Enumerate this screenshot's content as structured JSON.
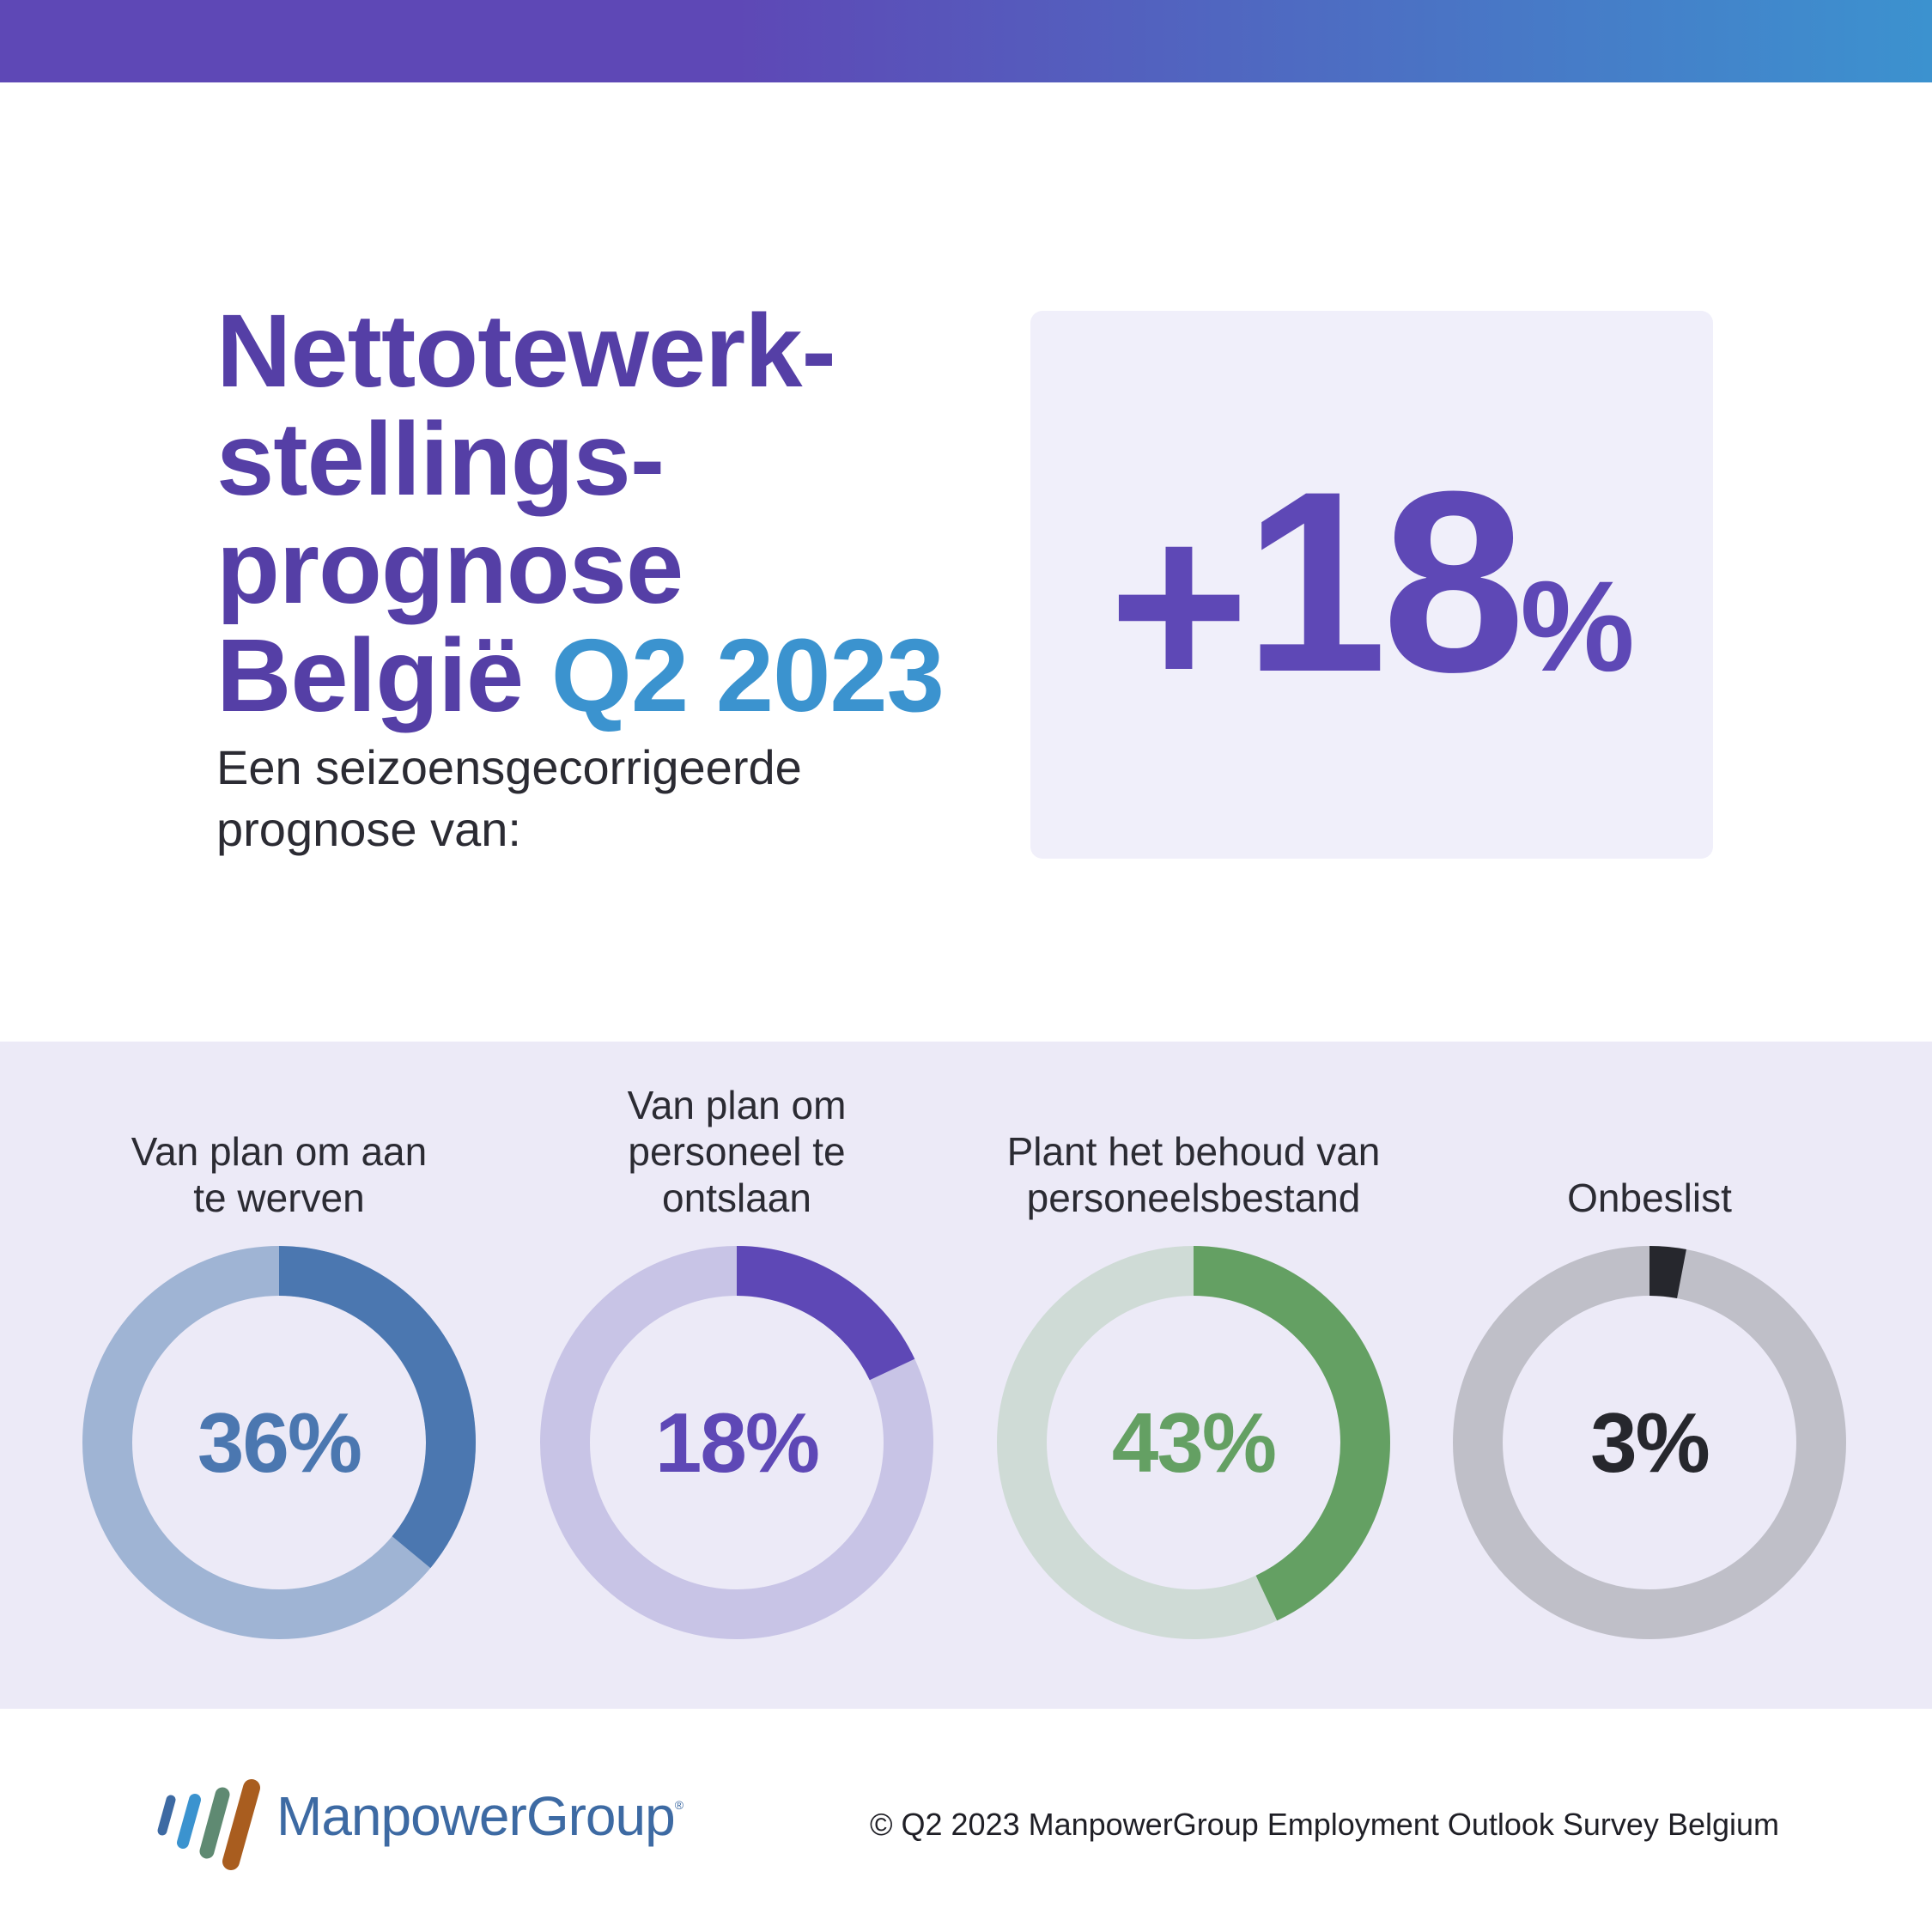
{
  "headline": {
    "line1": "Nettotewerk-",
    "line2": "stellings-",
    "line3": "prognose",
    "line4_country": "België",
    "line4_period": "Q2 2023"
  },
  "subtitle": {
    "line1": "Een seizoensgecorrigeerde",
    "line2": "prognose van:"
  },
  "forecast": {
    "sign": "+",
    "value": "18",
    "unit": "%"
  },
  "chart_data": {
    "type": "pie",
    "series": [
      {
        "name": "Van plan om aan te werven",
        "label_lines": [
          "Van plan om aan",
          "te werven"
        ],
        "value": 36,
        "value_label": "36%",
        "color": "#4b77b0",
        "track_color": "#9fb4d4",
        "text_color": "#4b77b0"
      },
      {
        "name": "Van plan om personeel te ontslaan",
        "label_lines": [
          "Van plan om",
          "personeel te",
          "ontslaan"
        ],
        "value": 18,
        "value_label": "18%",
        "color": "#5e48b6",
        "track_color": "#c8c4e6",
        "text_color": "#5e48b6"
      },
      {
        "name": "Plant het behoud van personeelsbestand",
        "label_lines": [
          "Plant het behoud van",
          "personeelsbestand"
        ],
        "value": 43,
        "value_label": "43%",
        "color": "#64a063",
        "track_color": "#cfdbd6",
        "text_color": "#64a063"
      },
      {
        "name": "Onbeslist",
        "label_lines": [
          "Onbeslist"
        ],
        "value": 3,
        "value_label": "3%",
        "color": "#26272d",
        "track_color": "#bfbfc8",
        "text_color": "#26272d"
      }
    ]
  },
  "footer": {
    "brand": "ManpowerGroup",
    "registered": "®",
    "copyright": "© Q2 2023 ManpowerGroup Employment Outlook Survey Belgium"
  },
  "colors": {
    "headline": "#553fa6",
    "accent": "#3b93cf",
    "big_box_bg": "#f0effa",
    "band_bg": "#eceaf7"
  }
}
